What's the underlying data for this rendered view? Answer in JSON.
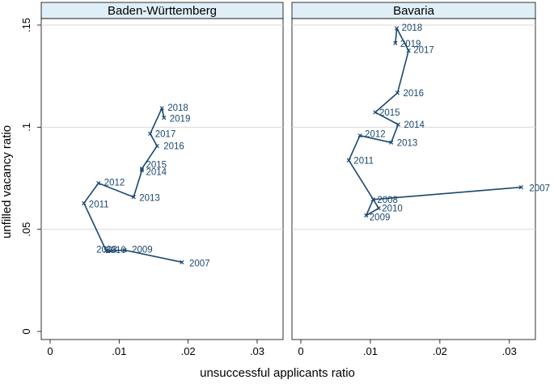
{
  "chart_data": {
    "type": "line",
    "subtype": "connected-scatter",
    "xlabel": "unsuccessful applicants ratio",
    "ylabel": "unfilled vacancy ratio",
    "xlim": [
      0,
      0.032
    ],
    "ylim": [
      0,
      0.15
    ],
    "xticks": [
      0,
      0.01,
      0.02,
      0.03
    ],
    "xtick_labels": [
      "0",
      ".01",
      ".02",
      ".03"
    ],
    "yticks": [
      0,
      0.05,
      0.1,
      0.15
    ],
    "ytick_labels": [
      "0",
      ".05",
      ".1",
      ".15"
    ],
    "grid": "horizontal",
    "line_color": "#1a476f",
    "panel_header_color": "#dfeef7",
    "panels": [
      {
        "title": "Baden-Württemberg",
        "points": [
          {
            "label": "2007",
            "x": 0.0191,
            "y": 0.0339
          },
          {
            "label": "2009",
            "x": 0.0108,
            "y": 0.0398
          },
          {
            "label": "2010",
            "x": 0.0087,
            "y": 0.0395
          },
          {
            "label": "2008",
            "x": 0.0081,
            "y": 0.0397
          },
          {
            "label": "2011",
            "x": 0.0049,
            "y": 0.0628
          },
          {
            "label": "2012",
            "x": 0.007,
            "y": 0.0726
          },
          {
            "label": "2013",
            "x": 0.0121,
            "y": 0.0658
          },
          {
            "label": "2014",
            "x": 0.0133,
            "y": 0.0789
          },
          {
            "label": "2015",
            "x": 0.0133,
            "y": 0.0797
          },
          {
            "label": "2016",
            "x": 0.0155,
            "y": 0.0908
          },
          {
            "label": "2017",
            "x": 0.0145,
            "y": 0.0968
          },
          {
            "label": "2018",
            "x": 0.0162,
            "y": 0.1093
          },
          {
            "label": "2019",
            "x": 0.0165,
            "y": 0.1046
          }
        ]
      },
      {
        "title": "Bavaria",
        "points": [
          {
            "label": "2007",
            "x": 0.0317,
            "y": 0.0706
          },
          {
            "label": "2008",
            "x": 0.0104,
            "y": 0.0646
          },
          {
            "label": "2009",
            "x": 0.0094,
            "y": 0.0568
          },
          {
            "label": "2010",
            "x": 0.0112,
            "y": 0.0603
          },
          {
            "label": "2011",
            "x": 0.0069,
            "y": 0.0838
          },
          {
            "label": "2012",
            "x": 0.0085,
            "y": 0.0959
          },
          {
            "label": "2013",
            "x": 0.013,
            "y": 0.0925
          },
          {
            "label": "2014",
            "x": 0.014,
            "y": 0.1013
          },
          {
            "label": "2015",
            "x": 0.0107,
            "y": 0.1073
          },
          {
            "label": "2016",
            "x": 0.0139,
            "y": 0.1168
          },
          {
            "label": "2017",
            "x": 0.0155,
            "y": 0.1375
          },
          {
            "label": "2018",
            "x": 0.0138,
            "y": 0.1484
          },
          {
            "label": "2019",
            "x": 0.0136,
            "y": 0.1412
          }
        ]
      }
    ]
  }
}
